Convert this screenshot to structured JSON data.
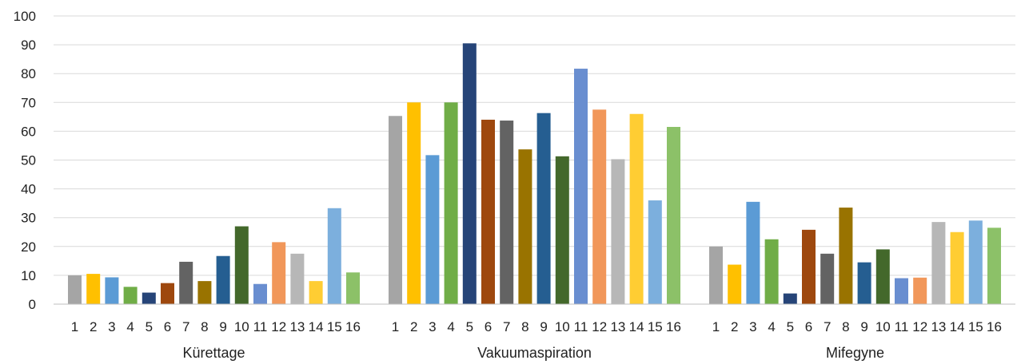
{
  "chart_data": {
    "type": "bar",
    "title": "",
    "xlabel": "",
    "ylabel": "",
    "ylim": [
      0,
      100
    ],
    "yticks": [
      0,
      10,
      20,
      30,
      40,
      50,
      60,
      70,
      80,
      90,
      100
    ],
    "grid": true,
    "legend": "none",
    "categories": [
      "Kürettage",
      "Vakuumaspiration",
      "Mifegyne"
    ],
    "bar_labels": [
      "1",
      "2",
      "3",
      "4",
      "5",
      "6",
      "7",
      "8",
      "9",
      "10",
      "11",
      "12",
      "13",
      "14",
      "15",
      "16"
    ],
    "colors": [
      "#a5a5a5",
      "#ffc000",
      "#5b9bd5",
      "#70ad47",
      "#264478",
      "#9e480e",
      "#636363",
      "#997300",
      "#255e91",
      "#43682b",
      "#698ed0",
      "#f1975a",
      "#b7b7b7",
      "#ffcd33",
      "#7cafdd",
      "#8cc168"
    ],
    "groups": [
      {
        "name": "Kürettage",
        "values": [
          10,
          10.5,
          9.3,
          6,
          4,
          7.3,
          14.7,
          8,
          16.7,
          27,
          7,
          21.5,
          17.5,
          8,
          33.3,
          11
        ]
      },
      {
        "name": "Vakuumaspiration",
        "values": [
          65.3,
          70,
          51.7,
          70,
          90.5,
          64,
          63.7,
          53.7,
          66.3,
          51.3,
          81.7,
          67.5,
          50.3,
          66,
          36,
          61.5
        ]
      },
      {
        "name": "Mifegyne",
        "values": [
          20,
          13.7,
          35.5,
          22.5,
          3.7,
          25.8,
          17.5,
          33.5,
          14.5,
          19,
          9,
          9.2,
          28.5,
          25,
          29,
          26.5
        ]
      }
    ]
  }
}
